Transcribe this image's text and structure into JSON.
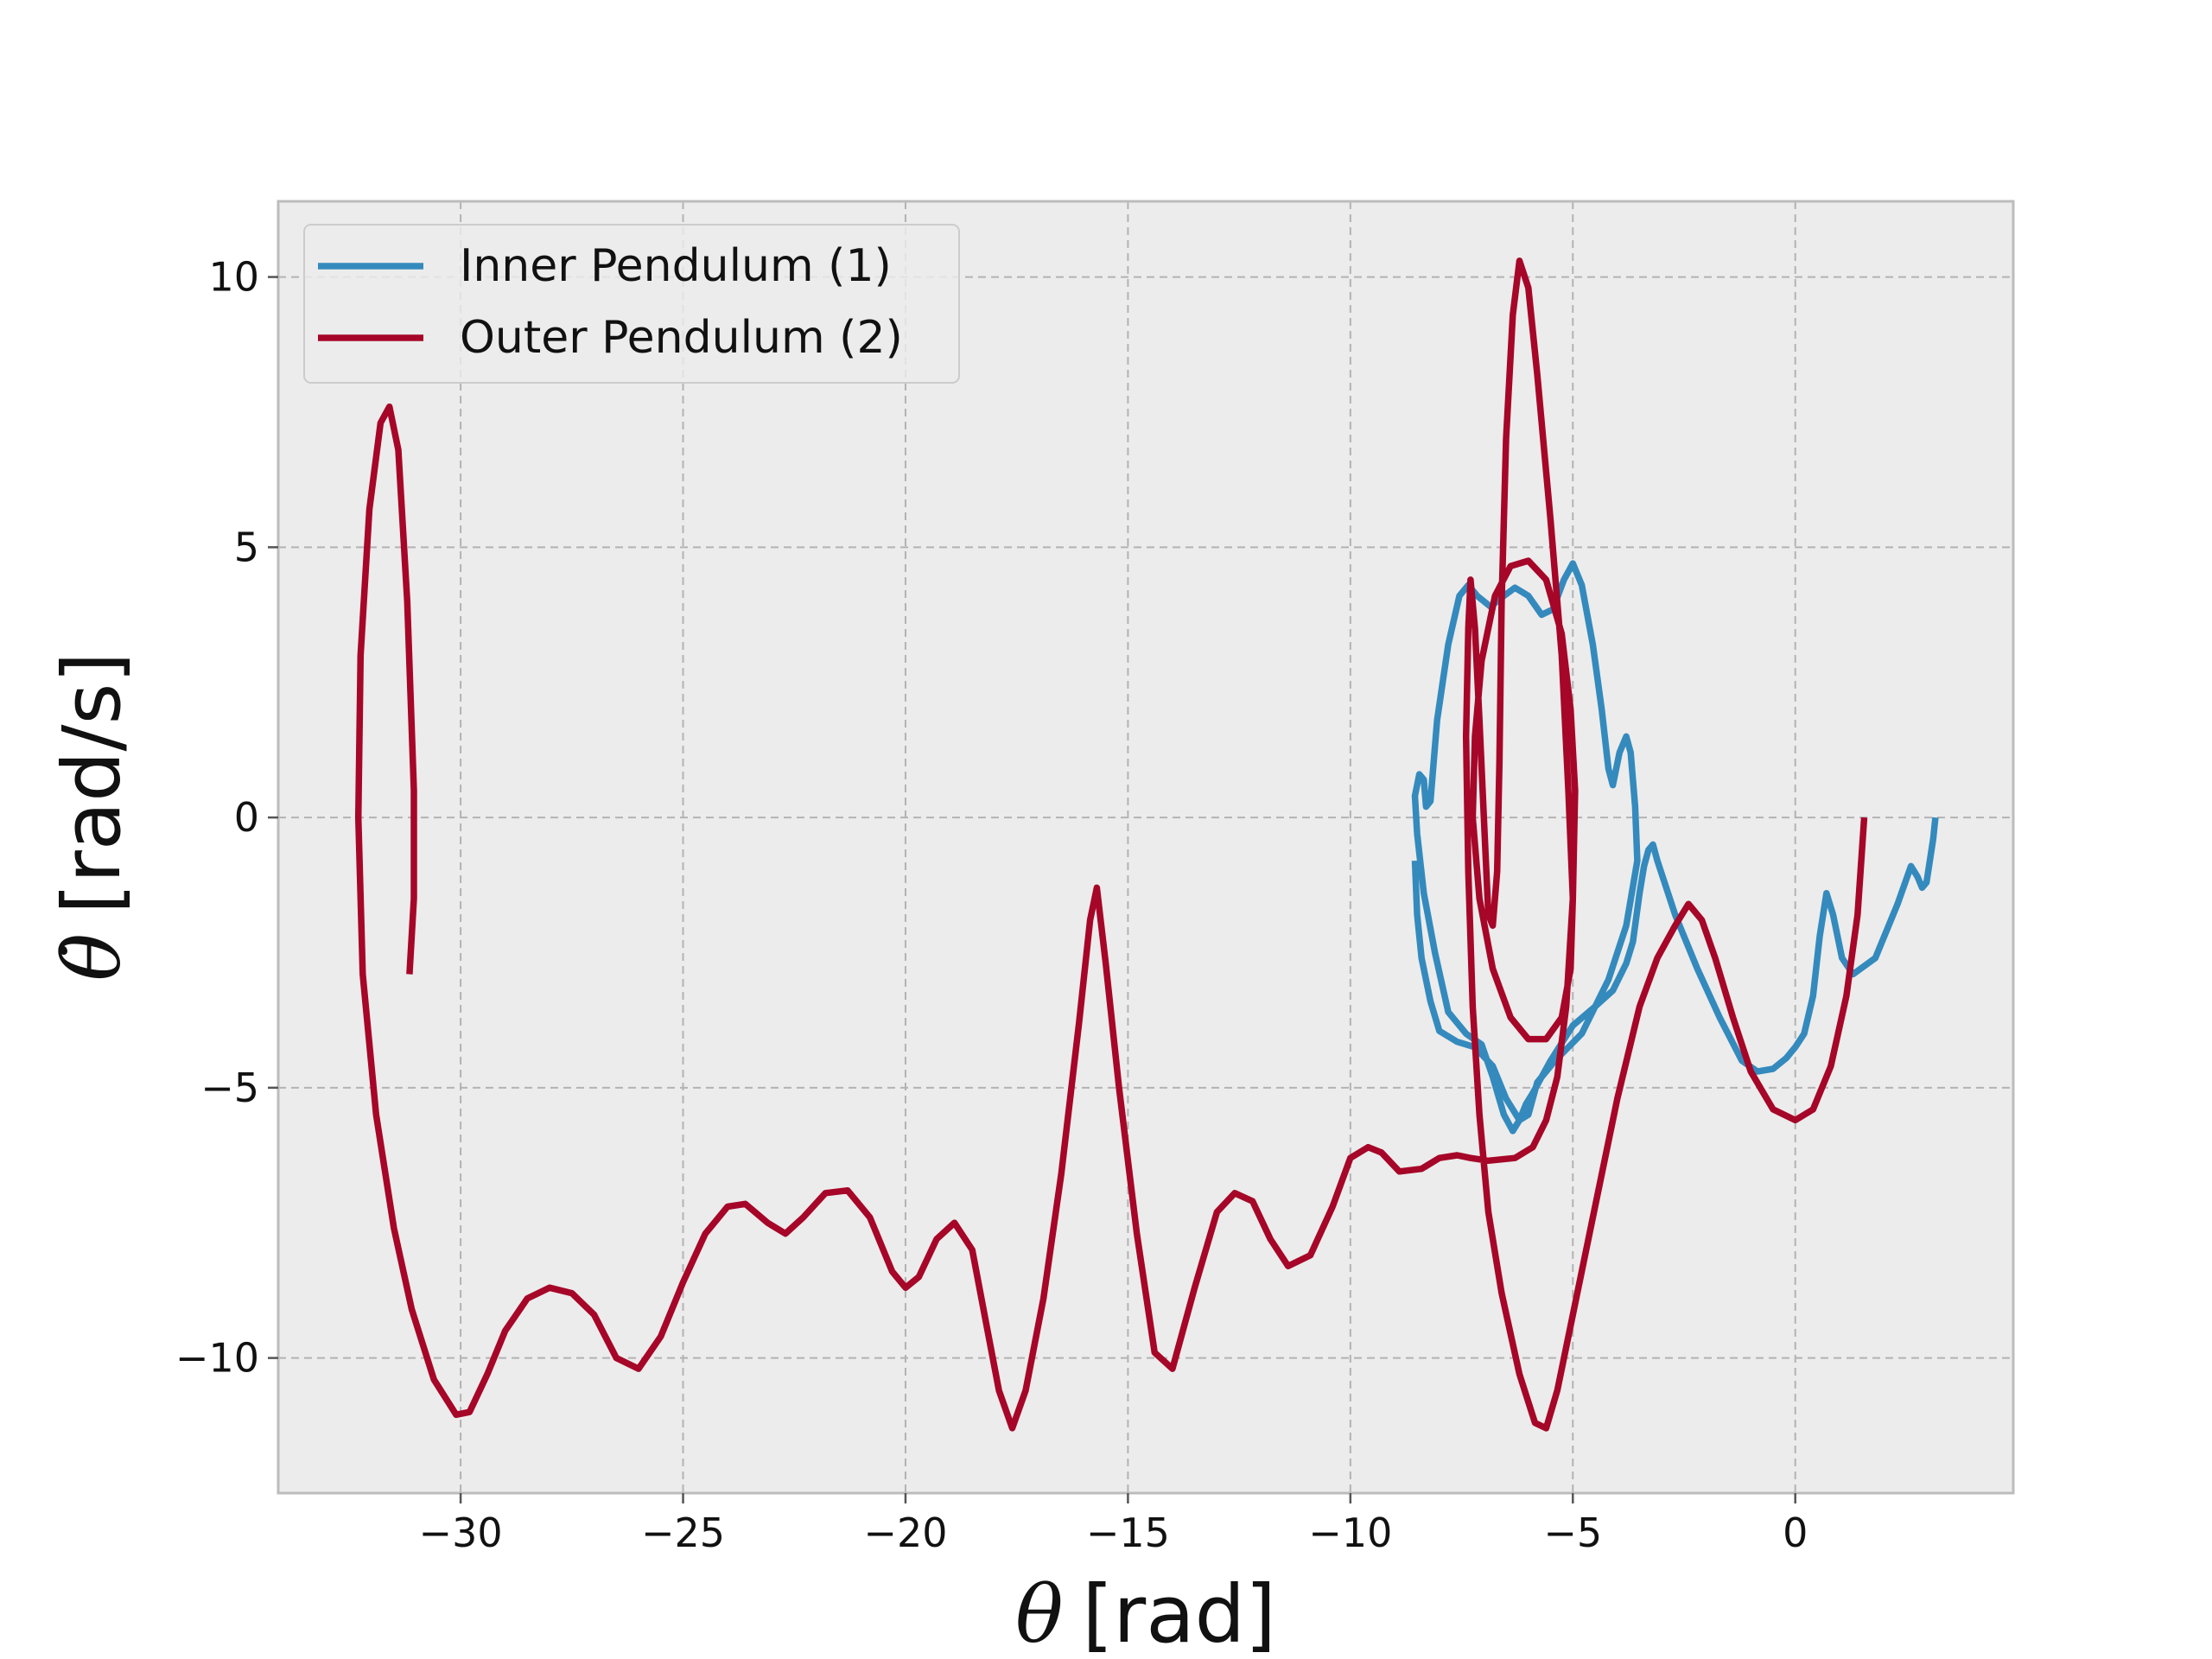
{
  "chart_data": {
    "type": "line",
    "title": "",
    "xlabel_symbol": "θ",
    "xlabel_unit": "[rad]",
    "ylabel_symbol": "θ̇",
    "ylabel_unit": "[rad/s]",
    "xlim": [
      -34.1,
      4.9
    ],
    "ylim": [
      -12.5,
      11.4
    ],
    "xticks": [
      -30,
      -25,
      -20,
      -15,
      -10,
      -5,
      0
    ],
    "yticks": [
      -10,
      -5,
      0,
      5,
      10
    ],
    "xtick_labels": [
      "−30",
      "−25",
      "−20",
      "−15",
      "−10",
      "−5",
      "0"
    ],
    "ytick_labels": [
      "−10",
      "−5",
      "0",
      "5",
      "10"
    ],
    "grid": true,
    "legend_position": "upper-left",
    "background": "#ececec",
    "series": [
      {
        "name": "Inner Pendulum (1)",
        "color": "#348abd",
        "points": [
          [
            3.15,
            0
          ],
          [
            3.1,
            -0.4
          ],
          [
            2.95,
            -1.2
          ],
          [
            2.85,
            -1.3
          ],
          [
            2.75,
            -1.1
          ],
          [
            2.6,
            -0.9
          ],
          [
            2.3,
            -1.6
          ],
          [
            1.8,
            -2.6
          ],
          [
            1.3,
            -2.9
          ],
          [
            1.05,
            -2.6
          ],
          [
            0.85,
            -1.8
          ],
          [
            0.7,
            -1.4
          ],
          [
            0.55,
            -2.2
          ],
          [
            0.4,
            -3.3
          ],
          [
            0.2,
            -4.0
          ],
          [
            0.0,
            -4.25
          ],
          [
            -0.2,
            -4.45
          ],
          [
            -0.5,
            -4.65
          ],
          [
            -0.85,
            -4.7
          ],
          [
            -1.2,
            -4.5
          ],
          [
            -1.7,
            -3.7
          ],
          [
            -2.2,
            -2.8
          ],
          [
            -2.7,
            -1.8
          ],
          [
            -3.1,
            -0.8
          ],
          [
            -3.2,
            -0.5
          ],
          [
            -3.3,
            -0.6
          ],
          [
            -3.4,
            -0.9
          ],
          [
            -3.5,
            -1.4
          ],
          [
            -3.65,
            -2.3
          ],
          [
            -3.8,
            -2.7
          ],
          [
            -4.1,
            -3.2
          ],
          [
            -4.5,
            -3.5
          ],
          [
            -5.0,
            -3.85
          ],
          [
            -5.5,
            -4.5
          ],
          [
            -5.9,
            -5.1
          ],
          [
            -6.05,
            -5.3
          ],
          [
            -6.2,
            -5.6
          ],
          [
            -6.35,
            -5.8
          ],
          [
            -6.55,
            -5.5
          ],
          [
            -6.8,
            -4.8
          ],
          [
            -7.05,
            -4.2
          ],
          [
            -7.4,
            -4.0
          ],
          [
            -7.8,
            -3.6
          ],
          [
            -8.1,
            -2.5
          ],
          [
            -8.35,
            -1.4
          ],
          [
            -8.5,
            -0.3
          ],
          [
            -8.55,
            0.4
          ],
          [
            -8.45,
            0.8
          ],
          [
            -8.35,
            0.7
          ],
          [
            -8.3,
            0.2
          ],
          [
            -8.2,
            0.3
          ],
          [
            -8.05,
            1.8
          ],
          [
            -7.8,
            3.2
          ],
          [
            -7.55,
            4.1
          ],
          [
            -7.35,
            4.3
          ],
          [
            -7.15,
            4.1
          ],
          [
            -6.85,
            3.9
          ],
          [
            -6.55,
            4.1
          ],
          [
            -6.3,
            4.25
          ],
          [
            -6.0,
            4.1
          ],
          [
            -5.7,
            3.75
          ],
          [
            -5.45,
            3.85
          ],
          [
            -5.2,
            4.4
          ],
          [
            -5.0,
            4.7
          ],
          [
            -4.8,
            4.3
          ],
          [
            -4.55,
            3.2
          ],
          [
            -4.35,
            2.0
          ],
          [
            -4.2,
            0.9
          ],
          [
            -4.1,
            0.6
          ],
          [
            -3.95,
            1.2
          ],
          [
            -3.8,
            1.5
          ],
          [
            -3.7,
            1.2
          ],
          [
            -3.6,
            0.2
          ],
          [
            -3.55,
            -0.8
          ],
          [
            -3.8,
            -2.0
          ],
          [
            -4.2,
            -3.0
          ],
          [
            -4.8,
            -4.0
          ],
          [
            -5.4,
            -4.5
          ],
          [
            -5.8,
            -4.9
          ],
          [
            -6.0,
            -5.5
          ],
          [
            -6.2,
            -5.6
          ],
          [
            -6.5,
            -5.2
          ],
          [
            -6.8,
            -4.6
          ],
          [
            -7.2,
            -4.25
          ],
          [
            -7.6,
            -4.15
          ],
          [
            -8.0,
            -3.95
          ],
          [
            -8.2,
            -3.4
          ],
          [
            -8.4,
            -2.6
          ],
          [
            -8.5,
            -1.8
          ],
          [
            -8.55,
            -0.8
          ]
        ]
      },
      {
        "name": "Outer Pendulum (2)",
        "color": "#a60628",
        "points": [
          [
            1.55,
            0
          ],
          [
            1.4,
            -1.8
          ],
          [
            1.15,
            -3.3
          ],
          [
            0.8,
            -4.6
          ],
          [
            0.4,
            -5.4
          ],
          [
            0.0,
            -5.6
          ],
          [
            -0.5,
            -5.4
          ],
          [
            -1.0,
            -4.7
          ],
          [
            -1.4,
            -3.7
          ],
          [
            -1.8,
            -2.6
          ],
          [
            -2.1,
            -1.9
          ],
          [
            -2.4,
            -1.6
          ],
          [
            -2.7,
            -2.0
          ],
          [
            -3.1,
            -2.6
          ],
          [
            -3.5,
            -3.5
          ],
          [
            -4.0,
            -5.2
          ],
          [
            -4.5,
            -7.2
          ],
          [
            -5.0,
            -9.2
          ],
          [
            -5.35,
            -10.6
          ],
          [
            -5.6,
            -11.3
          ],
          [
            -5.85,
            -11.2
          ],
          [
            -6.2,
            -10.3
          ],
          [
            -6.6,
            -8.8
          ],
          [
            -6.9,
            -7.3
          ],
          [
            -7.1,
            -5.5
          ],
          [
            -7.25,
            -3.5
          ],
          [
            -7.35,
            -1.0
          ],
          [
            -7.4,
            1.5
          ],
          [
            -7.35,
            3.5
          ],
          [
            -7.3,
            4.4
          ],
          [
            -7.2,
            3.5
          ],
          [
            -7.1,
            1.8
          ],
          [
            -7.0,
            0.0
          ],
          [
            -6.9,
            -1.8
          ],
          [
            -6.8,
            -2.0
          ],
          [
            -6.7,
            -1.0
          ],
          [
            -6.65,
            1.0
          ],
          [
            -6.6,
            4.0
          ],
          [
            -6.5,
            7.0
          ],
          [
            -6.35,
            9.3
          ],
          [
            -6.2,
            10.3
          ],
          [
            -6.0,
            9.8
          ],
          [
            -5.8,
            8.2
          ],
          [
            -5.5,
            5.5
          ],
          [
            -5.25,
            3.0
          ],
          [
            -5.1,
            0.5
          ],
          [
            -5.0,
            -1.5
          ],
          [
            -5.05,
            -2.8
          ],
          [
            -5.25,
            -3.7
          ],
          [
            -5.6,
            -4.1
          ],
          [
            -6.0,
            -4.1
          ],
          [
            -6.4,
            -3.7
          ],
          [
            -6.8,
            -2.8
          ],
          [
            -7.1,
            -1.5
          ],
          [
            -7.25,
            0.0
          ],
          [
            -7.2,
            1.5
          ],
          [
            -7.05,
            2.9
          ],
          [
            -6.75,
            4.1
          ],
          [
            -6.4,
            4.65
          ],
          [
            -6.0,
            4.75
          ],
          [
            -5.6,
            4.4
          ],
          [
            -5.25,
            3.4
          ],
          [
            -5.05,
            2.0
          ],
          [
            -4.95,
            0.5
          ],
          [
            -5.0,
            -1.5
          ],
          [
            -5.15,
            -3.5
          ],
          [
            -5.35,
            -4.8
          ],
          [
            -5.6,
            -5.6
          ],
          [
            -5.9,
            -6.1
          ],
          [
            -6.3,
            -6.3
          ],
          [
            -6.9,
            -6.35
          ],
          [
            -7.3,
            -6.3
          ],
          [
            -7.6,
            -6.25
          ],
          [
            -8.0,
            -6.3
          ],
          [
            -8.4,
            -6.5
          ],
          [
            -8.9,
            -6.55
          ],
          [
            -9.3,
            -6.2
          ],
          [
            -9.6,
            -6.1
          ],
          [
            -10.0,
            -6.3
          ],
          [
            -10.4,
            -7.2
          ],
          [
            -10.9,
            -8.1
          ],
          [
            -11.4,
            -8.3
          ],
          [
            -11.8,
            -7.8
          ],
          [
            -12.2,
            -7.1
          ],
          [
            -12.6,
            -6.95
          ],
          [
            -13.0,
            -7.3
          ],
          [
            -13.5,
            -8.7
          ],
          [
            -14.0,
            -10.2
          ],
          [
            -14.4,
            -9.9
          ],
          [
            -14.8,
            -7.7
          ],
          [
            -15.2,
            -5.0
          ],
          [
            -15.5,
            -2.7
          ],
          [
            -15.7,
            -1.3
          ],
          [
            -15.85,
            -1.9
          ],
          [
            -16.1,
            -3.8
          ],
          [
            -16.5,
            -6.6
          ],
          [
            -16.9,
            -8.9
          ],
          [
            -17.3,
            -10.6
          ],
          [
            -17.6,
            -11.3
          ],
          [
            -17.9,
            -10.6
          ],
          [
            -18.2,
            -9.3
          ],
          [
            -18.5,
            -8.0
          ],
          [
            -18.9,
            -7.5
          ],
          [
            -19.3,
            -7.8
          ],
          [
            -19.7,
            -8.5
          ],
          [
            -20.0,
            -8.7
          ],
          [
            -20.3,
            -8.4
          ],
          [
            -20.8,
            -7.4
          ],
          [
            -21.3,
            -6.9
          ],
          [
            -21.8,
            -6.95
          ],
          [
            -22.3,
            -7.4
          ],
          [
            -22.7,
            -7.7
          ],
          [
            -23.1,
            -7.5
          ],
          [
            -23.6,
            -7.15
          ],
          [
            -24.0,
            -7.2
          ],
          [
            -24.5,
            -7.7
          ],
          [
            -25.0,
            -8.6
          ],
          [
            -25.5,
            -9.6
          ],
          [
            -26.0,
            -10.2
          ],
          [
            -26.5,
            -10.0
          ],
          [
            -27.0,
            -9.2
          ],
          [
            -27.5,
            -8.8
          ],
          [
            -28.0,
            -8.7
          ],
          [
            -28.5,
            -8.9
          ],
          [
            -29.0,
            -9.5
          ],
          [
            -29.4,
            -10.3
          ],
          [
            -29.8,
            -11.0
          ],
          [
            -30.1,
            -11.05
          ],
          [
            -30.6,
            -10.4
          ],
          [
            -31.1,
            -9.1
          ],
          [
            -31.5,
            -7.6
          ],
          [
            -31.9,
            -5.5
          ],
          [
            -32.2,
            -2.9
          ],
          [
            -32.3,
            0.0
          ],
          [
            -32.25,
            3.0
          ],
          [
            -32.05,
            5.7
          ],
          [
            -31.8,
            7.3
          ],
          [
            -31.6,
            7.6
          ],
          [
            -31.4,
            6.8
          ],
          [
            -31.2,
            4.0
          ],
          [
            -31.05,
            0.5
          ],
          [
            -31.05,
            -1.5
          ],
          [
            -31.15,
            -2.9
          ]
        ]
      }
    ]
  }
}
